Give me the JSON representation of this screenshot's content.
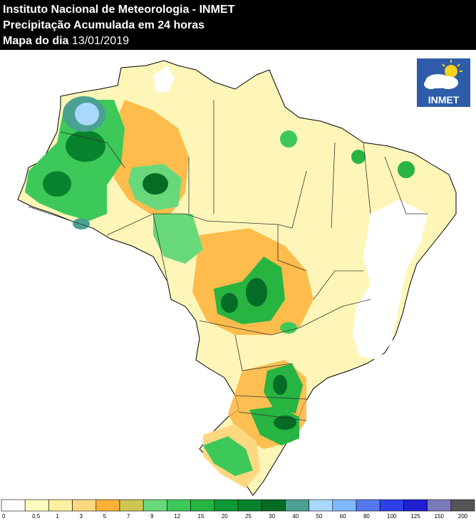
{
  "header": {
    "line1": "Instituto Nacional de Meteorologia - INMET",
    "line2": "Precipitação Acumulada em 24 horas",
    "line3_label": "Mapa do dia",
    "line3_date": "13/01/2019"
  },
  "logo": {
    "text": "INMET",
    "icon": "cloud-sun-icon"
  },
  "legend": {
    "classes": [
      {
        "label": "0",
        "color": "#ffffff"
      },
      {
        "label": "0.5",
        "color": "#fffcc0"
      },
      {
        "label": "1",
        "color": "#fef0a0"
      },
      {
        "label": "3",
        "color": "#fed880"
      },
      {
        "label": "5",
        "color": "#fdb137"
      },
      {
        "label": "7",
        "color": "#cdc653"
      },
      {
        "label": "9",
        "color": "#68d97a"
      },
      {
        "label": "12",
        "color": "#3cc95a"
      },
      {
        "label": "15",
        "color": "#27b441"
      },
      {
        "label": "20",
        "color": "#0a9a34"
      },
      {
        "label": "25",
        "color": "#08822c"
      },
      {
        "label": "30",
        "color": "#056c26"
      },
      {
        "label": "40",
        "color": "#4aa192"
      },
      {
        "label": "50",
        "color": "#a9d8ff"
      },
      {
        "label": "60",
        "color": "#7fb8ff"
      },
      {
        "label": "80",
        "color": "#5577f0"
      },
      {
        "label": "100",
        "color": "#2e3fe8"
      },
      {
        "label": "125",
        "color": "#1f1fd0"
      },
      {
        "label": "150",
        "color": "#7a7ab8"
      },
      {
        "label": "200",
        "color": "#555555"
      }
    ]
  }
}
